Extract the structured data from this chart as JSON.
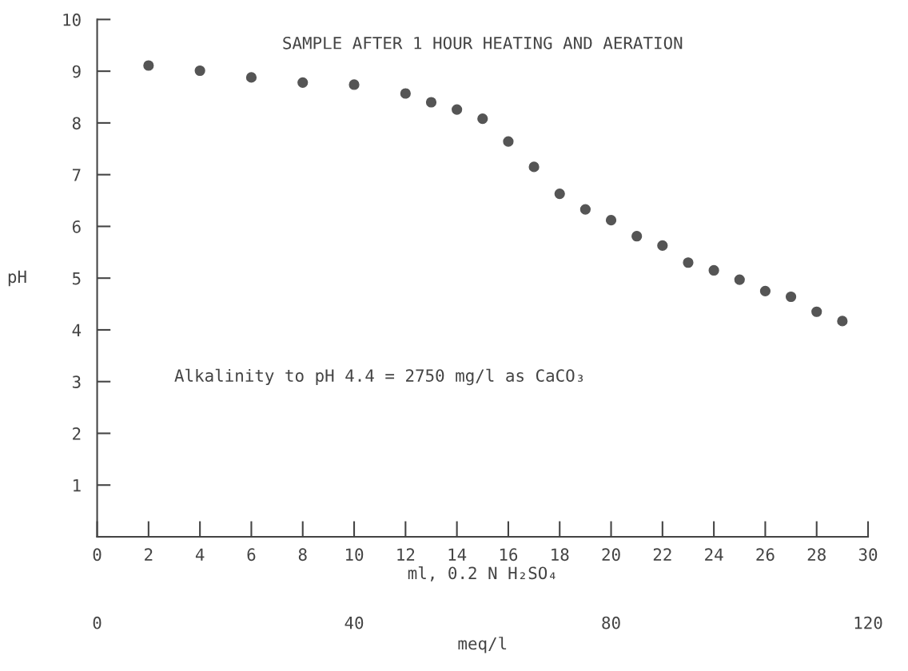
{
  "chart_data": {
    "type": "scatter",
    "title": "SAMPLE AFTER 1 HOUR HEATING AND AERATION",
    "xlabel": "ml, 0.2 N H₂SO₄",
    "ylabel": "pH",
    "x2label": "meq/l",
    "annotations": [
      "Alkalinity to pH 4.4 = 2750 mg/l as CaCO₃"
    ],
    "x": [
      2,
      4,
      6,
      8,
      10,
      12,
      13,
      14,
      15,
      16,
      17,
      18,
      19,
      20,
      21,
      22,
      23,
      24,
      25,
      26,
      27,
      28,
      29
    ],
    "series": [
      {
        "color": "#555555",
        "values": [
          9.11,
          9.01,
          8.88,
          8.78,
          8.74,
          8.57,
          8.4,
          8.26,
          8.08,
          7.64,
          7.15,
          6.63,
          6.33,
          6.12,
          5.81,
          5.63,
          5.3,
          5.15,
          4.97,
          4.75,
          4.64,
          4.35,
          4.17
        ]
      }
    ],
    "xlim": [
      0,
      30
    ],
    "xticks": [
      0,
      2,
      4,
      6,
      8,
      10,
      12,
      14,
      16,
      18,
      20,
      22,
      24,
      26,
      28,
      30
    ],
    "ylim": [
      0,
      10
    ],
    "yticks": [
      {
        "value": 0,
        "label": null
      },
      1,
      2,
      3,
      4,
      5,
      6,
      7,
      8,
      9,
      10
    ],
    "x2lim": [
      0,
      120
    ],
    "x2ticks": [
      0,
      40,
      80,
      120
    ],
    "marker": "circle",
    "grid": false,
    "legend": false
  }
}
